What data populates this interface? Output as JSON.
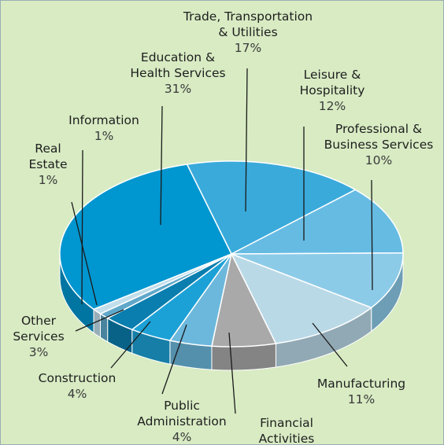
{
  "chart_data": {
    "type": "pie",
    "categories": [
      "Trade, Transportation\n& Utilities",
      "Leisure &\nHospitality",
      "Professional &\nBusiness Services",
      "Manufacturing",
      "Financial\nActivities",
      "Public\nAdministration",
      "Construction",
      "Other\nServices",
      "Real\nEstate",
      "Information",
      "Education &\nHealth Services"
    ],
    "values": [
      17,
      12,
      10,
      11,
      6,
      4,
      4,
      3,
      1,
      1,
      31
    ],
    "value_labels": [
      "17%",
      "12%",
      "10%",
      "11%",
      "6%",
      "4%",
      "4%",
      "3%",
      "1%",
      "1%",
      "31%"
    ],
    "colors": [
      "#3aaadb",
      "#66bbe3",
      "#8ccbe8",
      "#bad9e7",
      "#a9a9a9",
      "#6cb8dc",
      "#1ca1d6",
      "#0a7eae",
      "#5fa8ca",
      "#c2deeb",
      "#0096d0"
    ]
  }
}
